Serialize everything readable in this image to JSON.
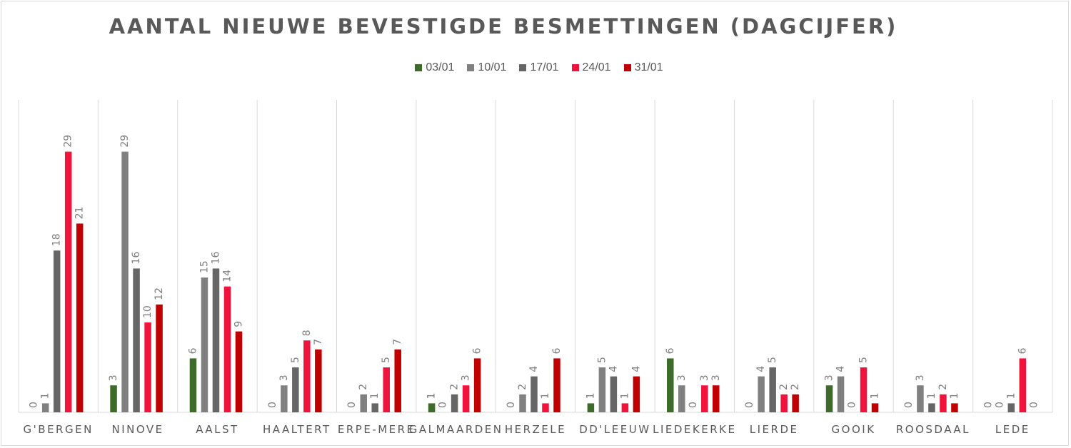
{
  "chart_data": {
    "type": "bar",
    "title": "AANTAL NIEUWE BEVESTIGDE BESMETTINGEN (DAGCIJFER)",
    "xlabel": "",
    "ylabel": "",
    "ylim": [
      0,
      33
    ],
    "grid": "vertical category separators",
    "legend_position": "top",
    "categories": [
      "G'BERGEN",
      "NINOVE",
      "AALST",
      "HAALTERT",
      "ERPE-MERE",
      "GALMAARDEN",
      "HERZELE",
      "DD'LEEUW",
      "LIEDEKERKE",
      "LIERDE",
      "GOOIK",
      "ROOSDAAL",
      "LEDE"
    ],
    "series": [
      {
        "name": "03/01",
        "color": "#3f6b2a",
        "values": [
          0,
          3,
          6,
          0,
          0,
          1,
          0,
          1,
          6,
          0,
          3,
          0,
          0
        ]
      },
      {
        "name": "10/01",
        "color": "#808080",
        "values": [
          1,
          29,
          15,
          3,
          2,
          0,
          2,
          5,
          3,
          4,
          4,
          3,
          0
        ]
      },
      {
        "name": "17/01",
        "color": "#666666",
        "values": [
          18,
          16,
          16,
          5,
          1,
          2,
          4,
          4,
          0,
          5,
          0,
          1,
          1
        ]
      },
      {
        "name": "24/01",
        "color": "#f0143c",
        "values": [
          29,
          10,
          14,
          8,
          5,
          3,
          1,
          1,
          3,
          2,
          5,
          2,
          6
        ]
      },
      {
        "name": "31/01",
        "color": "#c00000",
        "values": [
          21,
          12,
          9,
          7,
          7,
          6,
          6,
          4,
          3,
          2,
          1,
          1,
          0
        ]
      }
    ]
  }
}
